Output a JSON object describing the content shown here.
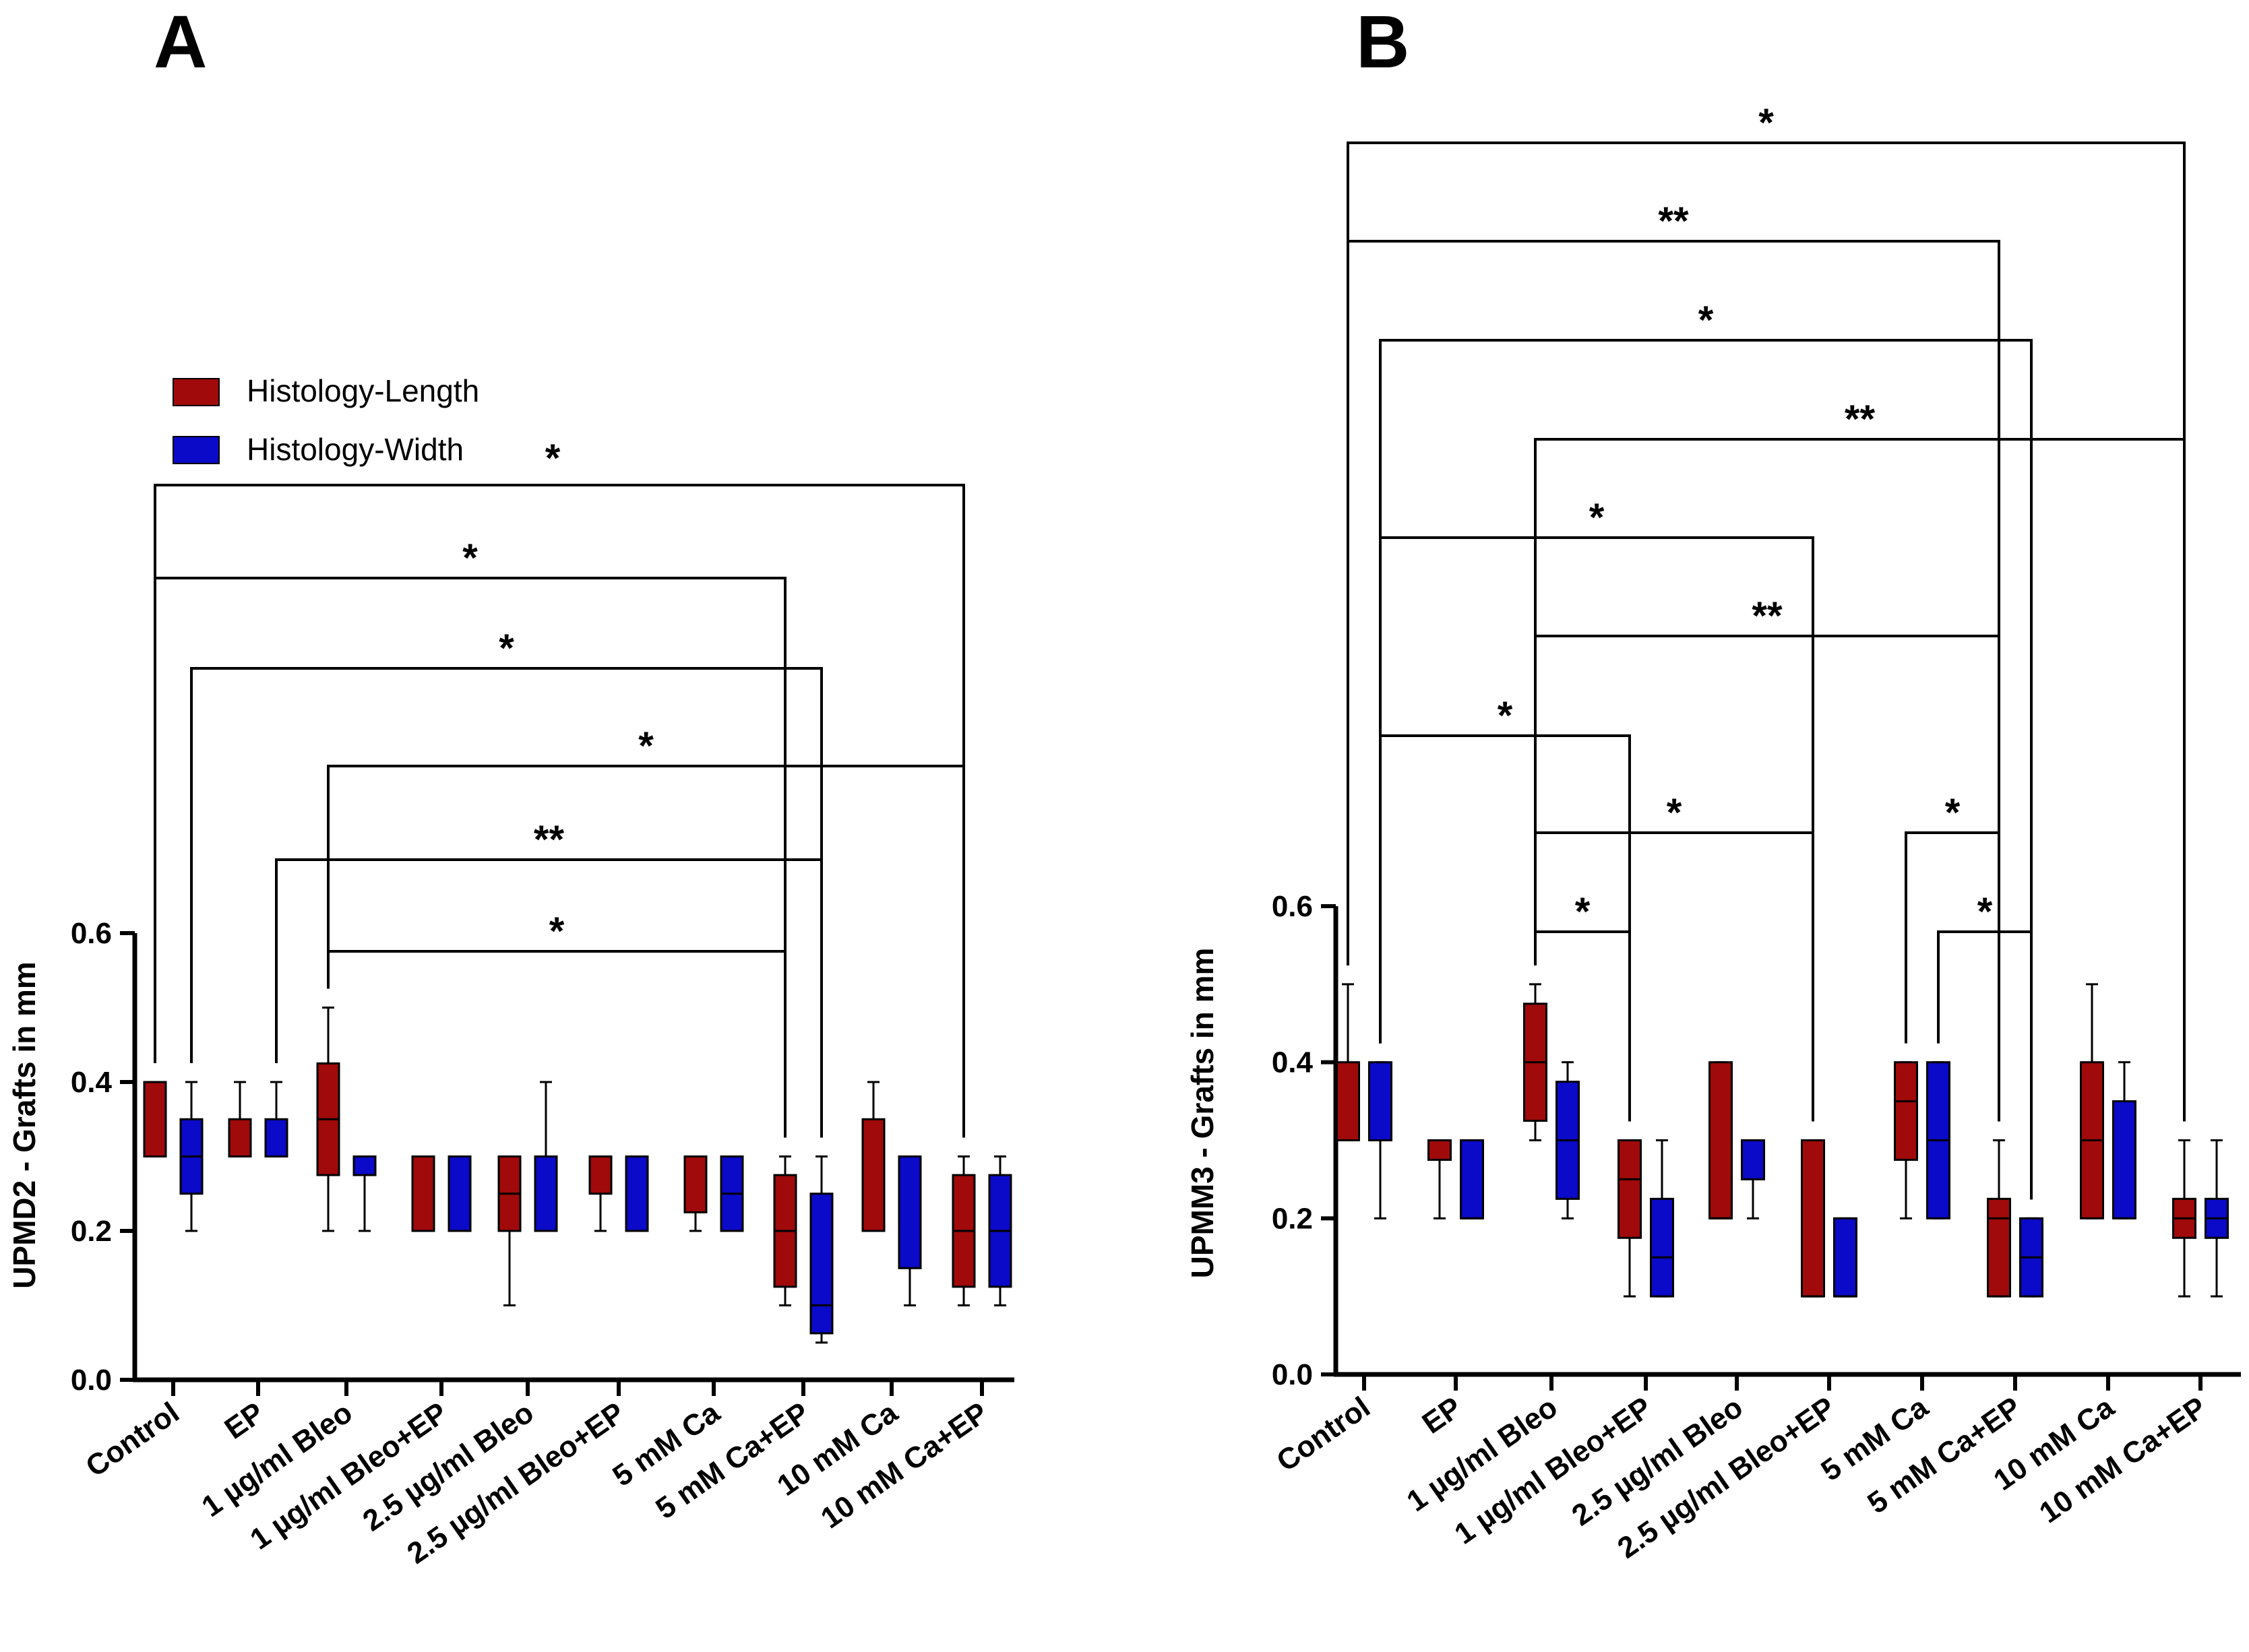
{
  "colors": {
    "length": "#A00A0A",
    "width": "#0A0AC8",
    "line": "#000000"
  },
  "legend": {
    "items": [
      {
        "label": "Histology-Length",
        "color": "#A00A0A"
      },
      {
        "label": "Histology-Width",
        "color": "#0A0AC8"
      }
    ]
  },
  "chart_data": [
    {
      "panel": "A",
      "type": "boxplot",
      "ylabel": "UPMD2 - Grafts in mm",
      "ylim": [
        0,
        0.6
      ],
      "yticks": [
        "0.0",
        "0.2",
        "0.4",
        "0.6"
      ],
      "categories": [
        "Control",
        "EP",
        "1 µg/ml Bleo",
        "1 µg/ml Bleo+EP",
        "2.5 µg/ml Bleo",
        "2.5 µg/ml Bleo+EP",
        "5 mM Ca",
        "5 mM Ca+EP",
        "10 mM Ca",
        "10 mM Ca+EP"
      ],
      "series": [
        {
          "name": "Histology-Length",
          "boxes": [
            {
              "min": 0.3,
              "q1": 0.3,
              "median": 0.4,
              "q3": 0.4,
              "max": 0.4
            },
            {
              "min": 0.3,
              "q1": 0.3,
              "median": 0.3,
              "q3": 0.35,
              "max": 0.4
            },
            {
              "min": 0.2,
              "q1": 0.275,
              "median": 0.35,
              "q3": 0.425,
              "max": 0.5
            },
            {
              "min": 0.2,
              "q1": 0.2,
              "median": 0.2,
              "q3": 0.3,
              "max": 0.3
            },
            {
              "min": 0.1,
              "q1": 0.2,
              "median": 0.25,
              "q3": 0.3,
              "max": 0.3
            },
            {
              "min": 0.2,
              "q1": 0.25,
              "median": 0.3,
              "q3": 0.3,
              "max": 0.3
            },
            {
              "min": 0.2,
              "q1": 0.225,
              "median": 0.3,
              "q3": 0.3,
              "max": 0.3
            },
            {
              "min": 0.1,
              "q1": 0.125,
              "median": 0.2,
              "q3": 0.275,
              "max": 0.3
            },
            {
              "min": 0.2,
              "q1": 0.2,
              "median": 0.2,
              "q3": 0.35,
              "max": 0.4
            },
            {
              "min": 0.1,
              "q1": 0.125,
              "median": 0.2,
              "q3": 0.275,
              "max": 0.3
            }
          ]
        },
        {
          "name": "Histology-Width",
          "boxes": [
            {
              "min": 0.2,
              "q1": 0.25,
              "median": 0.3,
              "q3": 0.35,
              "max": 0.4
            },
            {
              "min": 0.3,
              "q1": 0.3,
              "median": 0.3,
              "q3": 0.35,
              "max": 0.4
            },
            {
              "min": 0.2,
              "q1": 0.275,
              "median": 0.3,
              "q3": 0.3,
              "max": 0.3
            },
            {
              "min": 0.2,
              "q1": 0.2,
              "median": 0.2,
              "q3": 0.3,
              "max": 0.3
            },
            {
              "min": 0.2,
              "q1": 0.2,
              "median": 0.2,
              "q3": 0.3,
              "max": 0.4
            },
            {
              "min": 0.2,
              "q1": 0.2,
              "median": 0.3,
              "q3": 0.3,
              "max": 0.3
            },
            {
              "min": 0.2,
              "q1": 0.2,
              "median": 0.25,
              "q3": 0.3,
              "max": 0.3
            },
            {
              "min": 0.05,
              "q1": 0.0625,
              "median": 0.1,
              "q3": 0.25,
              "max": 0.3
            },
            {
              "min": 0.1,
              "q1": 0.15,
              "median": 0.3,
              "q3": 0.3,
              "max": 0.3
            },
            {
              "min": 0.1,
              "q1": 0.125,
              "median": 0.2,
              "q3": 0.275,
              "max": 0.3
            }
          ]
        }
      ],
      "comparisons": [
        {
          "from": [
            0,
            0
          ],
          "to": [
            9,
            0
          ],
          "label": "*"
        },
        {
          "from": [
            0,
            0
          ],
          "to": [
            7,
            0
          ],
          "label": "*"
        },
        {
          "from": [
            0,
            1
          ],
          "to": [
            7,
            1
          ],
          "label": "*"
        },
        {
          "from": [
            2,
            0
          ],
          "to": [
            9,
            0
          ],
          "label": "*"
        },
        {
          "from": [
            1,
            1
          ],
          "to": [
            7,
            1
          ],
          "label": "**"
        },
        {
          "from": [
            2,
            0
          ],
          "to": [
            7,
            0
          ],
          "label": "*"
        }
      ]
    },
    {
      "panel": "B",
      "type": "boxplot",
      "ylabel": "UPMM3 - Grafts in mm",
      "ylim": [
        0,
        0.6
      ],
      "yticks": [
        "0.0",
        "0.2",
        "0.4",
        "0.6"
      ],
      "categories": [
        "Control",
        "EP",
        "1 µg/ml Bleo",
        "1 µg/ml Bleo+EP",
        "2.5 µg/ml Bleo",
        "2.5 µg/ml Bleo+EP",
        "5 mM Ca",
        "5 mM Ca+EP",
        "10 mM Ca",
        "10 mM Ca+EP"
      ],
      "series": [
        {
          "name": "Histology-Length",
          "boxes": [
            {
              "min": 0.3,
              "q1": 0.3,
              "median": 0.3,
              "q3": 0.4,
              "max": 0.5
            },
            {
              "min": 0.2,
              "q1": 0.275,
              "median": 0.3,
              "q3": 0.3,
              "max": 0.3
            },
            {
              "min": 0.3,
              "q1": 0.325,
              "median": 0.4,
              "q3": 0.475,
              "max": 0.5
            },
            {
              "min": 0.1,
              "q1": 0.175,
              "median": 0.25,
              "q3": 0.3,
              "max": 0.3
            },
            {
              "min": 0.2,
              "q1": 0.2,
              "median": 0.2,
              "q3": 0.4,
              "max": 0.4
            },
            {
              "min": 0.1,
              "q1": 0.1,
              "median": 0.1,
              "q3": 0.3,
              "max": 0.3
            },
            {
              "min": 0.2,
              "q1": 0.275,
              "median": 0.35,
              "q3": 0.4,
              "max": 0.4
            },
            {
              "min": 0.1,
              "q1": 0.1,
              "median": 0.2,
              "q3": 0.225,
              "max": 0.3
            },
            {
              "min": 0.2,
              "q1": 0.2,
              "median": 0.3,
              "q3": 0.4,
              "max": 0.5
            },
            {
              "min": 0.1,
              "q1": 0.175,
              "median": 0.2,
              "q3": 0.225,
              "max": 0.3
            }
          ]
        },
        {
          "name": "Histology-Width",
          "boxes": [
            {
              "min": 0.2,
              "q1": 0.3,
              "median": 0.3,
              "q3": 0.4,
              "max": 0.4
            },
            {
              "min": 0.2,
              "q1": 0.2,
              "median": 0.2,
              "q3": 0.3,
              "max": 0.3
            },
            {
              "min": 0.2,
              "q1": 0.225,
              "median": 0.3,
              "q3": 0.375,
              "max": 0.4
            },
            {
              "min": 0.1,
              "q1": 0.1,
              "median": 0.15,
              "q3": 0.225,
              "max": 0.3
            },
            {
              "min": 0.2,
              "q1": 0.25,
              "median": 0.3,
              "q3": 0.3,
              "max": 0.3
            },
            {
              "min": 0.1,
              "q1": 0.1,
              "median": 0.1,
              "q3": 0.2,
              "max": 0.2
            },
            {
              "min": 0.2,
              "q1": 0.2,
              "median": 0.3,
              "q3": 0.4,
              "max": 0.4
            },
            {
              "min": 0.1,
              "q1": 0.1,
              "median": 0.15,
              "q3": 0.2,
              "max": 0.2
            },
            {
              "min": 0.2,
              "q1": 0.2,
              "median": 0.2,
              "q3": 0.35,
              "max": 0.4
            },
            {
              "min": 0.1,
              "q1": 0.175,
              "median": 0.2,
              "q3": 0.225,
              "max": 0.3
            }
          ]
        }
      ],
      "comparisons": [
        {
          "from": [
            0,
            0
          ],
          "to": [
            9,
            0
          ],
          "label": "*"
        },
        {
          "from": [
            0,
            0
          ],
          "to": [
            7,
            0
          ],
          "label": "**"
        },
        {
          "from": [
            0,
            1
          ],
          "to": [
            7,
            1
          ],
          "label": "*"
        },
        {
          "from": [
            2,
            0
          ],
          "to": [
            9,
            0
          ],
          "label": "**"
        },
        {
          "from": [
            0,
            1
          ],
          "to": [
            5,
            0
          ],
          "label": "*"
        },
        {
          "from": [
            2,
            0
          ],
          "to": [
            7,
            0
          ],
          "label": "**"
        },
        {
          "from": [
            0,
            1
          ],
          "to": [
            3,
            0
          ],
          "label": "*"
        },
        {
          "from": [
            2,
            0
          ],
          "to": [
            5,
            0
          ],
          "label": "*"
        },
        {
          "from": [
            6,
            0
          ],
          "to": [
            7,
            0
          ],
          "label": "*"
        },
        {
          "from": [
            2,
            0
          ],
          "to": [
            3,
            0
          ],
          "label": "*"
        },
        {
          "from": [
            6,
            1
          ],
          "to": [
            7,
            1
          ],
          "label": "*"
        }
      ]
    }
  ]
}
